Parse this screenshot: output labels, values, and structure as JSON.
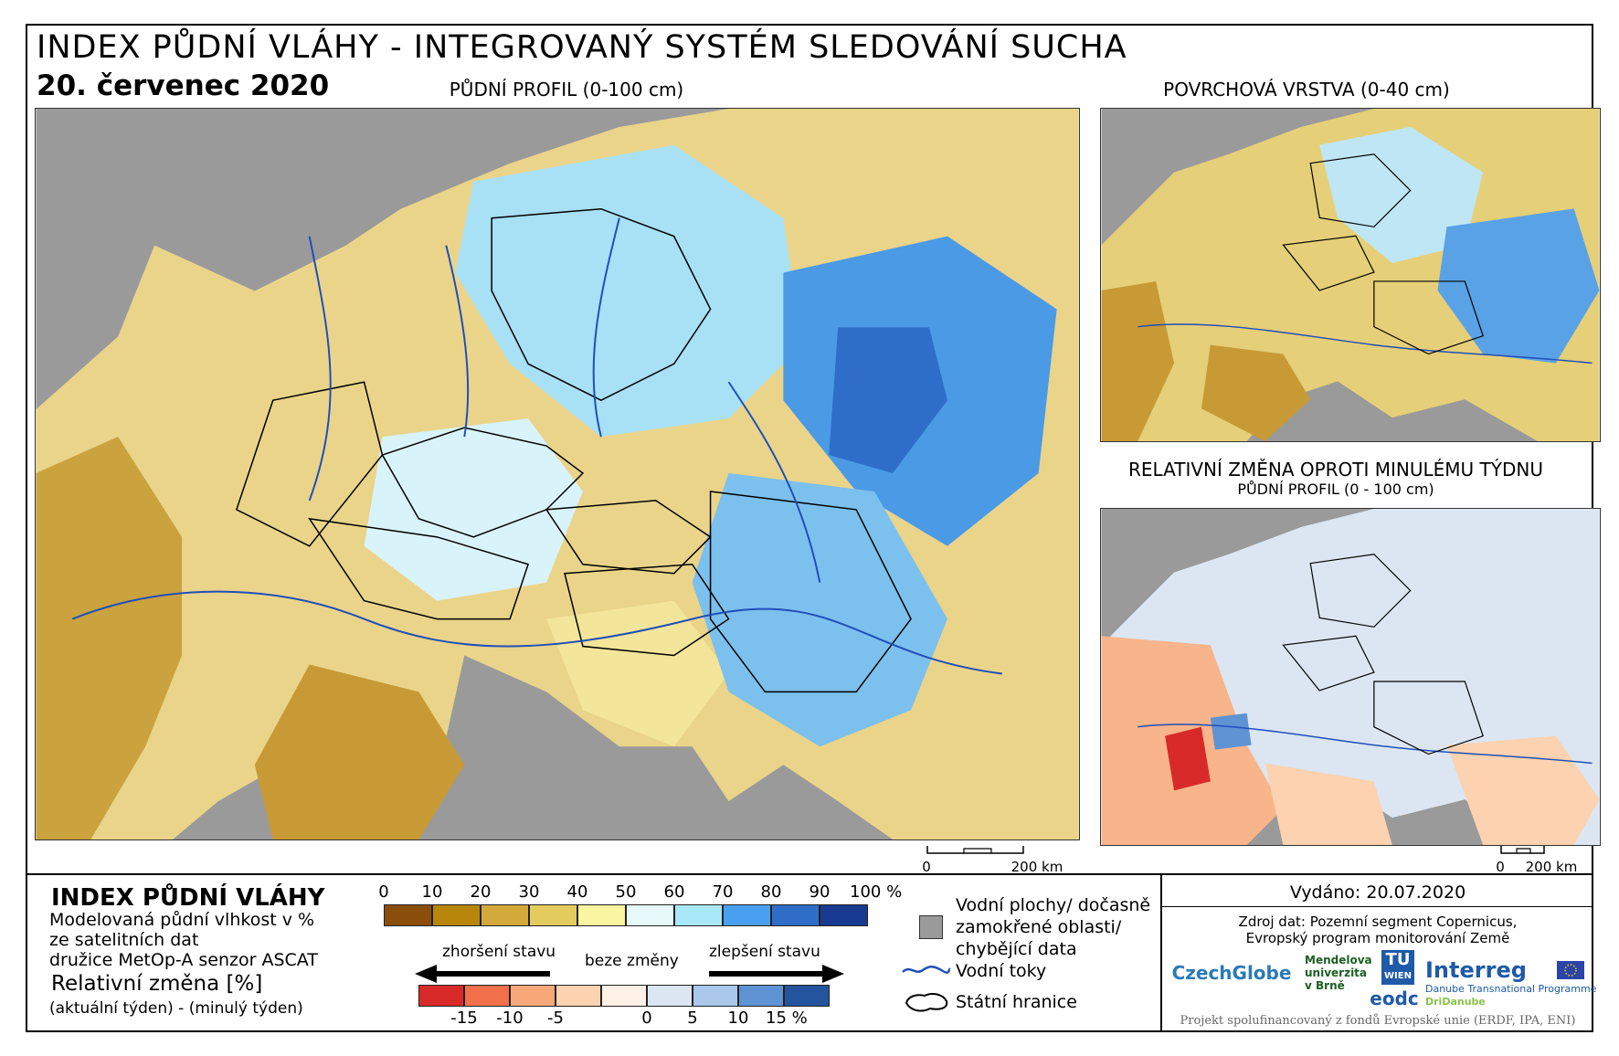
{
  "header": {
    "title": "INDEX PŮDNÍ VLÁHY - INTEGROVANÝ SYSTÉM SLEDOVÁNÍ SUCHA",
    "date": "20. červenec 2020"
  },
  "maps": {
    "main_caption": "PŮDNÍ PROFIL (0-100 cm)",
    "surface_caption": "POVRCHOVÁ VRSTVA (0-40 cm)",
    "change_caption": "RELATIVNÍ ZMĚNA OPROTI MINULÉMU TÝDNU",
    "change_subcaption": "PŮDNÍ PROFIL (0 - 100 cm)",
    "scale_main": {
      "zero": "0",
      "end": "200 km"
    },
    "scale_change": {
      "zero": "0",
      "end": "200 km"
    }
  },
  "legend": {
    "title": "INDEX PŮDNÍ VLÁHY",
    "desc_line1": "Modelovaná půdní vlhkost v %",
    "desc_line2": "ze satelitních dat",
    "desc_line3": "družice MetOp-A senzor ASCAT",
    "change_title": "Relativní změna [%]",
    "change_desc": "(aktuální týden) - (minulý týden)",
    "index_ticks": [
      "0",
      "10",
      "20",
      "30",
      "40",
      "50",
      "60",
      "70",
      "80",
      "90",
      "100 %"
    ],
    "index_colors": [
      "#8a4d0a",
      "#b8860b",
      "#d2a93a",
      "#e3cc5d",
      "#faf5a0",
      "#e6f8f8",
      "#a8e8f8",
      "#4aa0f0",
      "#2f6ec8",
      "#183a90"
    ],
    "arrow_left": "zhoršení stavu",
    "arrow_mid": "beze změny",
    "arrow_right": "zlepšení stavu",
    "change_ticks": [
      "-15",
      "-10",
      "-5",
      "0",
      "5",
      "10",
      "15 %"
    ],
    "change_colors": [
      "#d92a2a",
      "#f2704a",
      "#f8a878",
      "#fcd2b0",
      "#fdf0e4",
      "#dbe6f2",
      "#a9c8ea",
      "#5e93d4",
      "#24549e"
    ],
    "water_label_1": "Vodní plochy/ dočasně",
    "water_label_2": "zamokřené oblasti/",
    "water_label_3": "chybějící data",
    "rivers_label": "Vodní toky",
    "borders_label": "Státní hranice"
  },
  "info": {
    "issued": "Vydáno: 20.07.2020",
    "source_line1": "Zdroj dat: Pozemní segment Copernicus,",
    "source_line2": "Evropský program monitorování Země",
    "footer": "Projekt spolufinancovaný z fondů Evropské unie (ERDF, IPA, ENI)",
    "logos": {
      "czechglobe": "CzechGlobe",
      "mendelu_1": "Mendelova",
      "mendelu_2": "univerzita",
      "mendelu_3": "v Brně",
      "tuwien_1": "TU",
      "tuwien_2": "WIEN",
      "eodc": "eodc",
      "interreg": "Interreg",
      "interreg_sub1": "Danube Transnational Programme",
      "interreg_sub2": "DriDanube"
    }
  },
  "colors": {
    "sea": "#9a9a9a",
    "river": "#1f4fb8",
    "border": "#000000"
  }
}
